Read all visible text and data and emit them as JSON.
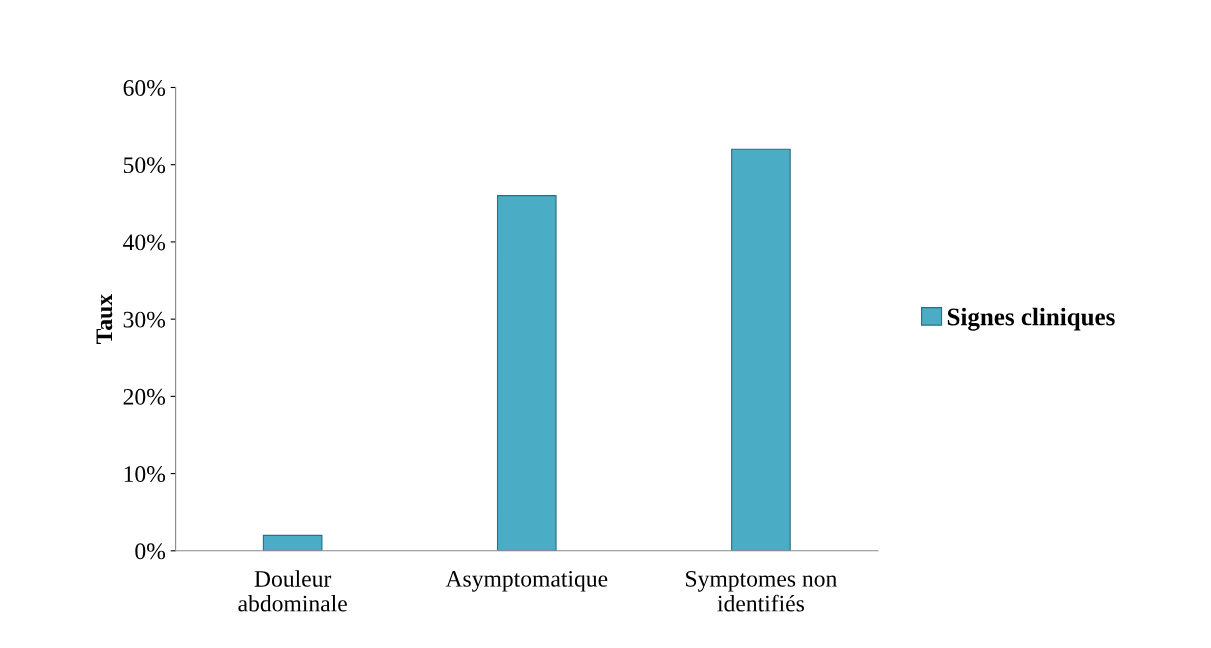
{
  "chart_data": {
    "type": "bar",
    "ylabel": "Taux",
    "categories": [
      "Douleur\nabdominale",
      "Asymptomatique",
      "Symptomes non\nidentifiés"
    ],
    "series": [
      {
        "name": "Signes cliniques",
        "color": "#4bacc6",
        "values": [
          2,
          46,
          52
        ]
      }
    ],
    "ylim": [
      0,
      60
    ],
    "yticks": [
      {
        "value": 0,
        "label": "0%"
      },
      {
        "value": 10,
        "label": "10%"
      },
      {
        "value": 20,
        "label": "20%"
      },
      {
        "value": 30,
        "label": "30%"
      },
      {
        "value": 40,
        "label": "40%"
      },
      {
        "value": 50,
        "label": "50%"
      },
      {
        "value": 60,
        "label": "60%"
      }
    ],
    "grid": false,
    "legend": "right"
  }
}
